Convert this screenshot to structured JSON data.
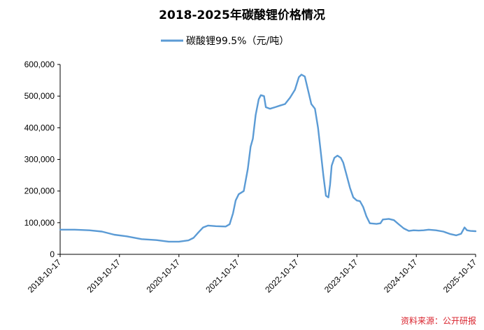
{
  "chart_data": {
    "type": "line",
    "title": "2018-2025年碳酸锂价格情况",
    "legend": {
      "placement": "top-center"
    },
    "series": [
      {
        "name": "碳酸锂99.5%（元/吨）",
        "color": "#5b9bd5",
        "points": [
          [
            "2018-10-17",
            78000
          ],
          [
            "2019-01-15",
            78000
          ],
          [
            "2019-04-15",
            76000
          ],
          [
            "2019-07-01",
            72000
          ],
          [
            "2019-09-15",
            62000
          ],
          [
            "2019-12-01",
            57000
          ],
          [
            "2020-03-01",
            48000
          ],
          [
            "2020-06-01",
            45000
          ],
          [
            "2020-08-15",
            40000
          ],
          [
            "2020-10-17",
            40000
          ],
          [
            "2020-12-15",
            44000
          ],
          [
            "2021-01-15",
            52000
          ],
          [
            "2021-02-15",
            70000
          ],
          [
            "2021-03-15",
            85000
          ],
          [
            "2021-04-15",
            91000
          ],
          [
            "2021-06-01",
            89000
          ],
          [
            "2021-08-01",
            88000
          ],
          [
            "2021-08-25",
            95000
          ],
          [
            "2021-09-15",
            130000
          ],
          [
            "2021-10-01",
            170000
          ],
          [
            "2021-10-20",
            190000
          ],
          [
            "2021-11-20",
            200000
          ],
          [
            "2021-12-15",
            270000
          ],
          [
            "2022-01-01",
            340000
          ],
          [
            "2022-01-15",
            365000
          ],
          [
            "2022-02-01",
            440000
          ],
          [
            "2022-02-20",
            490000
          ],
          [
            "2022-03-05",
            503000
          ],
          [
            "2022-03-25",
            500000
          ],
          [
            "2022-04-05",
            465000
          ],
          [
            "2022-05-01",
            460000
          ],
          [
            "2022-06-01",
            465000
          ],
          [
            "2022-07-01",
            470000
          ],
          [
            "2022-08-01",
            475000
          ],
          [
            "2022-09-01",
            495000
          ],
          [
            "2022-10-01",
            520000
          ],
          [
            "2022-10-25",
            560000
          ],
          [
            "2022-11-10",
            568000
          ],
          [
            "2022-12-01",
            562000
          ],
          [
            "2022-12-20",
            520000
          ],
          [
            "2023-01-10",
            475000
          ],
          [
            "2023-02-01",
            460000
          ],
          [
            "2023-02-20",
            400000
          ],
          [
            "2023-03-10",
            320000
          ],
          [
            "2023-03-25",
            250000
          ],
          [
            "2023-04-10",
            185000
          ],
          [
            "2023-04-25",
            180000
          ],
          [
            "2023-05-05",
            220000
          ],
          [
            "2023-05-15",
            280000
          ],
          [
            "2023-06-01",
            305000
          ],
          [
            "2023-06-20",
            312000
          ],
          [
            "2023-07-10",
            305000
          ],
          [
            "2023-07-25",
            290000
          ],
          [
            "2023-08-15",
            250000
          ],
          [
            "2023-09-05",
            210000
          ],
          [
            "2023-09-25",
            180000
          ],
          [
            "2023-10-17",
            170000
          ],
          [
            "2023-11-05",
            168000
          ],
          [
            "2023-11-25",
            150000
          ],
          [
            "2023-12-15",
            120000
          ],
          [
            "2024-01-05",
            98000
          ],
          [
            "2024-02-15",
            96000
          ],
          [
            "2024-03-10",
            98000
          ],
          [
            "2024-03-25",
            110000
          ],
          [
            "2024-05-01",
            112000
          ],
          [
            "2024-06-01",
            108000
          ],
          [
            "2024-07-01",
            95000
          ],
          [
            "2024-08-01",
            82000
          ],
          [
            "2024-09-01",
            74000
          ],
          [
            "2024-10-01",
            76000
          ],
          [
            "2024-11-01",
            75000
          ],
          [
            "2024-12-01",
            76000
          ],
          [
            "2025-01-01",
            78000
          ],
          [
            "2025-02-15",
            76000
          ],
          [
            "2025-04-01",
            72000
          ],
          [
            "2025-05-15",
            64000
          ],
          [
            "2025-06-20",
            60000
          ],
          [
            "2025-07-20",
            65000
          ],
          [
            "2025-08-10",
            85000
          ],
          [
            "2025-08-25",
            76000
          ],
          [
            "2025-09-15",
            74000
          ],
          [
            "2025-10-17",
            73000
          ]
        ]
      }
    ],
    "x_ticks": [
      "2018-10-17",
      "2019-10-17",
      "2020-10-17",
      "2021-10-17",
      "2022-10-17",
      "2023-10-17",
      "2024-10-17",
      "2025-10-17"
    ],
    "y_ticks": [
      0,
      100000,
      200000,
      300000,
      400000,
      500000,
      600000
    ],
    "y_tick_labels": [
      "0",
      "100,000",
      "200,000",
      "300,000",
      "400,000",
      "500,000",
      "600,000"
    ],
    "ylim": [
      0,
      600000
    ],
    "xlim": [
      "2018-10-17",
      "2025-10-17"
    ],
    "grid": false,
    "source": "资料来源：公开研报"
  }
}
